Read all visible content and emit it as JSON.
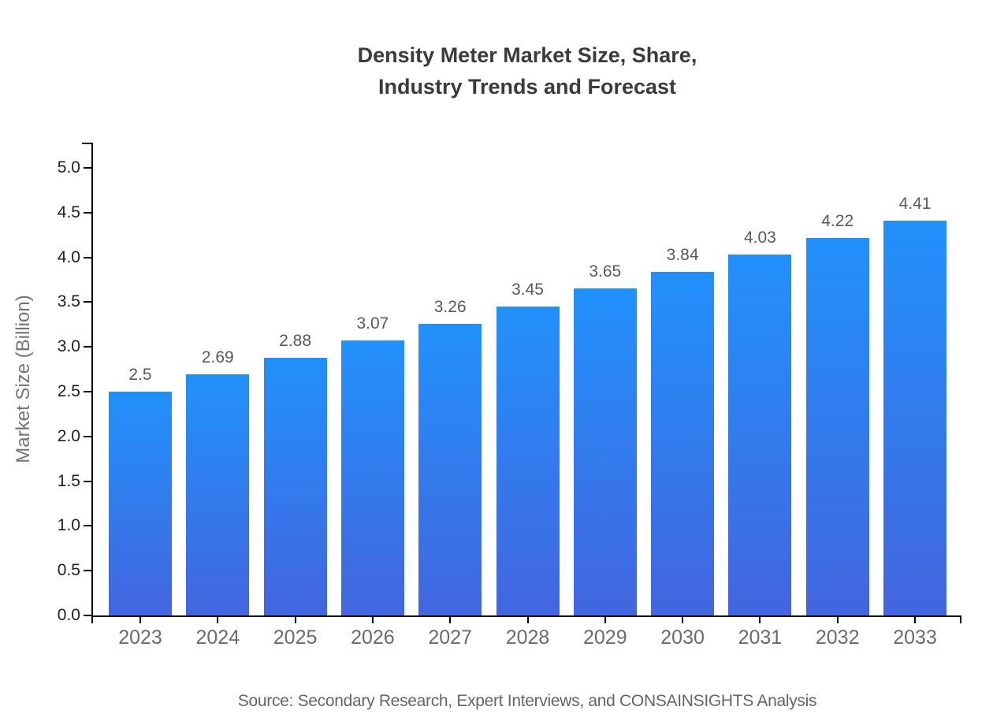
{
  "title": {
    "line1": "Density Meter Market Size, Share,",
    "line2": "Industry Trends and Forecast"
  },
  "source_note": "Source: Secondary Research, Expert Interviews, and CONSAINSIGHTS Analysis",
  "chart_data": {
    "type": "bar",
    "title": "Density Meter Market Size, Share, Industry Trends and Forecast",
    "categories": [
      "2023",
      "2024",
      "2025",
      "2026",
      "2027",
      "2028",
      "2029",
      "2030",
      "2031",
      "2032",
      "2033"
    ],
    "values": [
      2.5,
      2.69,
      2.88,
      3.07,
      3.26,
      3.45,
      3.65,
      3.84,
      4.03,
      4.22,
      4.41
    ],
    "value_labels": [
      "2.5",
      "2.69",
      "2.88",
      "3.07",
      "3.26",
      "3.45",
      "3.65",
      "3.84",
      "4.03",
      "4.22",
      "4.41"
    ],
    "xlabel": "",
    "ylabel": "Market Size (Billion)",
    "ylim": [
      0.0,
      5.0
    ],
    "ytick_step": 0.5,
    "ytick_labels": [
      "0.0",
      "0.5",
      "1.0",
      "1.5",
      "2.0",
      "2.5",
      "3.0",
      "3.5",
      "4.0",
      "4.5",
      "5.0"
    ],
    "grid": false,
    "legend": "none",
    "colors": {
      "bar_gradient_top": "#2191FB",
      "bar_gradient_bottom": "#4365E0",
      "axis": "#000000",
      "title_text": "#3B3B3B",
      "ytick_label_text": "#1F1F1F",
      "xtick_label_text": "#6B6B6B",
      "value_label_text": "#595959",
      "axis_label_text": "#757575",
      "source_text": "#666666"
    }
  }
}
